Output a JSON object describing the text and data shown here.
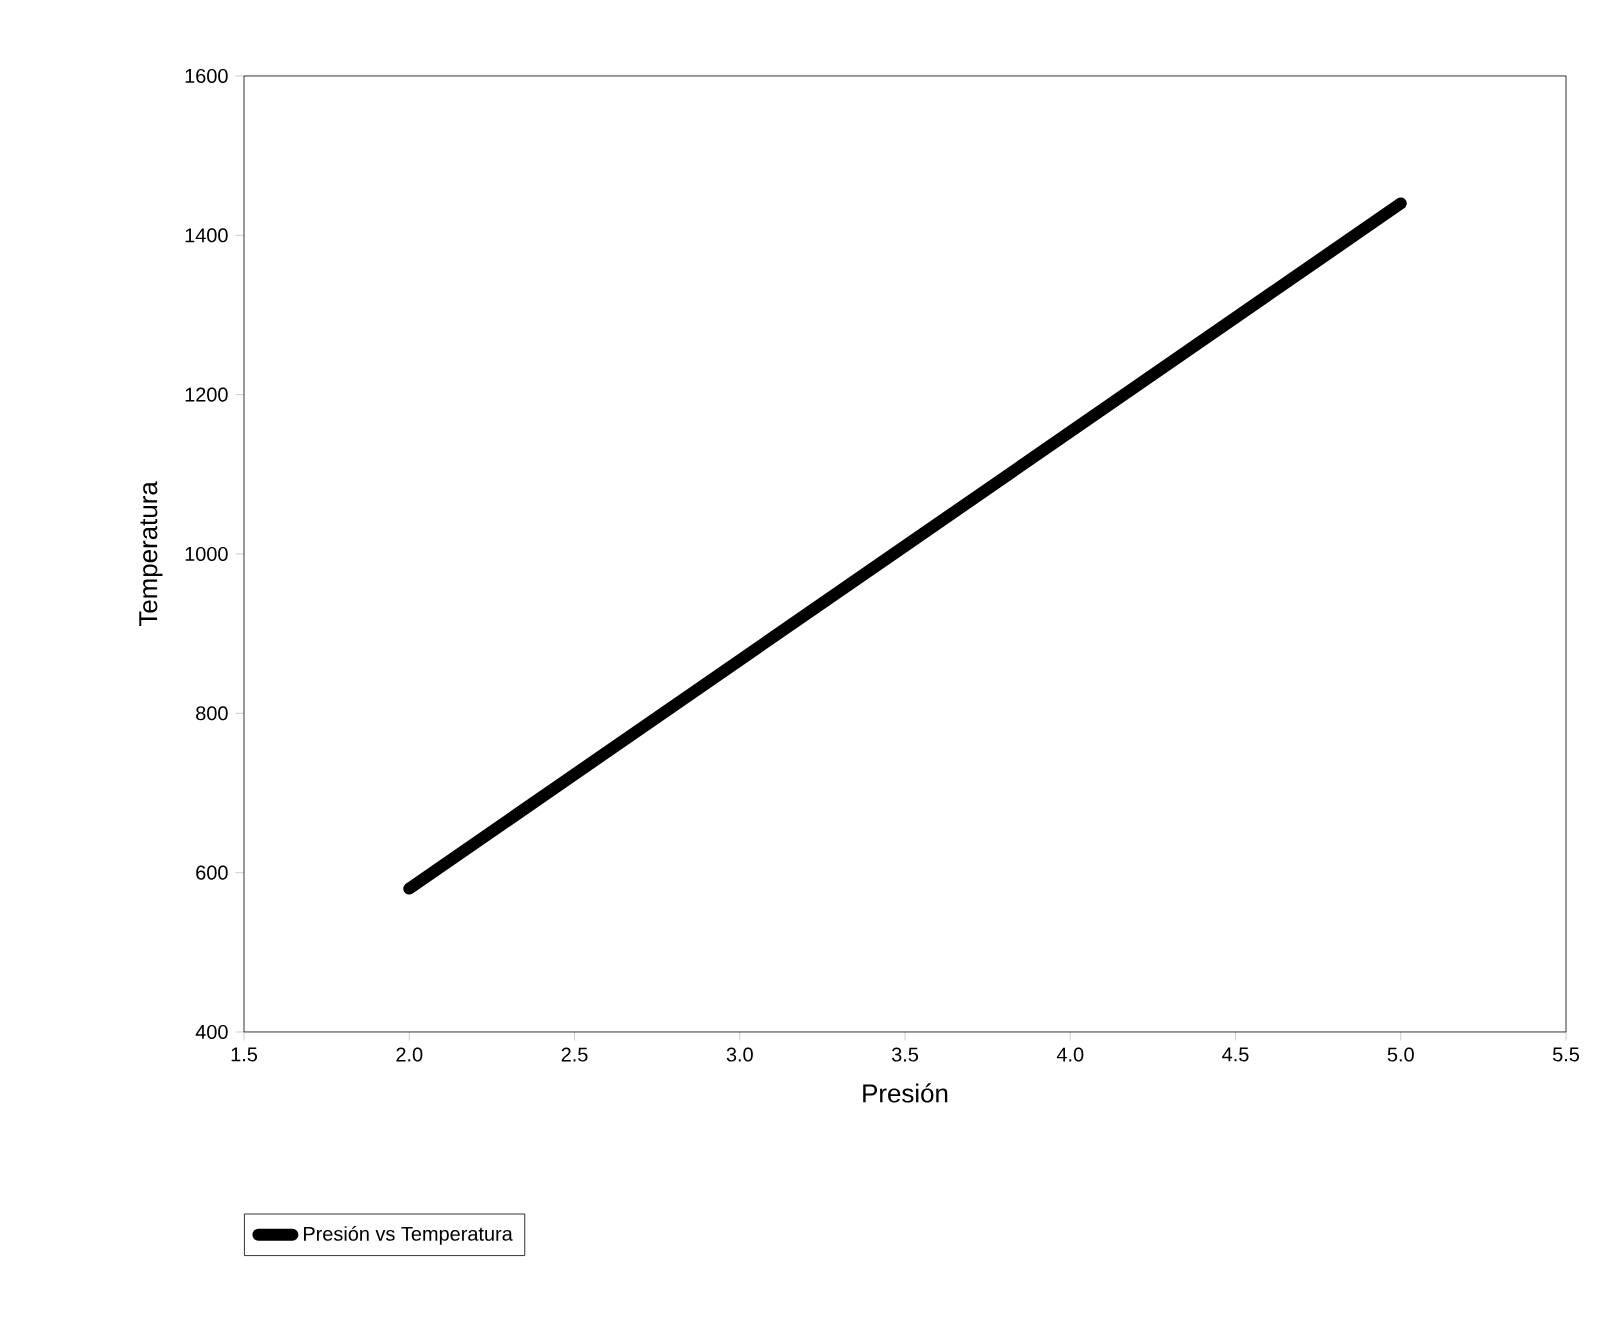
{
  "chart_data": {
    "type": "line",
    "xlabel": "Presión",
    "ylabel": "Temperatura",
    "x": [
      2.0,
      3.5,
      5.0
    ],
    "series": [
      {
        "name": "Presión vs Temperatura",
        "color": "#000000",
        "values": [
          580,
          1010,
          1440
        ]
      }
    ],
    "xlim": [
      1.5,
      5.5
    ],
    "ylim": [
      400,
      1600
    ],
    "xticks": [
      1.5,
      {
        "value": 2,
        "label": "2.0"
      },
      2.5,
      {
        "value": 3,
        "label": "3.0"
      },
      3.5,
      {
        "value": 4,
        "label": "4.0"
      },
      4.5,
      {
        "value": 5,
        "label": "5.0"
      },
      5.5
    ],
    "yticks": [
      400,
      600,
      800,
      1000,
      1200,
      1400,
      1600
    ],
    "legend": "bottom left",
    "marker": "none",
    "line_style": "solid",
    "grid": false
  }
}
